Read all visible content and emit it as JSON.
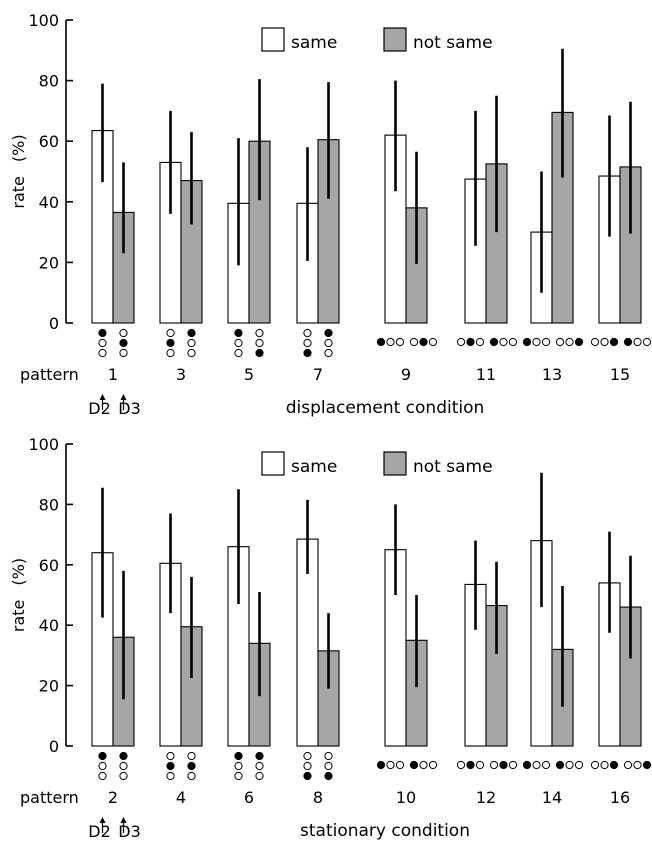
{
  "colors": {
    "same": "#ffffff",
    "not_same": "#a6a6a8",
    "ink": "#000000"
  },
  "chart_data": [
    {
      "type": "bar",
      "title": "",
      "xlabel": "displacement condition",
      "ylabel": "rate",
      "ylabel_unit": "(%)",
      "row_label": "pattern",
      "ylim": [
        0,
        100
      ],
      "yticks": [
        0,
        20,
        40,
        60,
        80,
        100
      ],
      "legend_position": "top",
      "categories": [
        "1",
        "3",
        "5",
        "7",
        "9",
        "11",
        "13",
        "15"
      ],
      "series": [
        {
          "name": "same",
          "color": "#ffffff",
          "values": [
            63.5,
            53,
            39.5,
            39.5,
            62,
            47.5,
            30,
            48.5
          ],
          "err_low": [
            46.5,
            36,
            19,
            20.5,
            43.5,
            25.5,
            10,
            28.5
          ],
          "err_high": [
            79,
            70,
            61,
            58,
            80,
            70,
            50,
            68.5
          ]
        },
        {
          "name": "not same",
          "color": "#a6a6a8",
          "values": [
            36.5,
            47,
            60,
            60.5,
            38,
            52.5,
            69.5,
            51.5
          ],
          "err_low": [
            23,
            32.5,
            40.5,
            41,
            19.5,
            30,
            48,
            29.5
          ],
          "err_high": [
            53,
            63,
            80.5,
            79.5,
            56.5,
            75,
            90.5,
            73
          ]
        }
      ],
      "pattern_icons": [
        {
          "layout": "grid",
          "d2": [
            1,
            0,
            0
          ],
          "d3": [
            0,
            1,
            0
          ]
        },
        {
          "layout": "grid",
          "d2": [
            0,
            1,
            0
          ],
          "d3": [
            1,
            0,
            0
          ]
        },
        {
          "layout": "grid",
          "d2": [
            1,
            0,
            0
          ],
          "d3": [
            0,
            0,
            1
          ]
        },
        {
          "layout": "grid",
          "d2": [
            0,
            0,
            1
          ],
          "d3": [
            1,
            0,
            0
          ]
        },
        {
          "layout": "row",
          "d2": [
            1,
            0,
            0
          ],
          "d3": [
            0,
            1,
            0
          ]
        },
        {
          "layout": "row",
          "d2": [
            0,
            1,
            0
          ],
          "d3": [
            1,
            0,
            0
          ]
        },
        {
          "layout": "row",
          "d2": [
            1,
            0,
            0
          ],
          "d3": [
            0,
            0,
            1
          ]
        },
        {
          "layout": "row",
          "d2": [
            0,
            0,
            1
          ],
          "d3": [
            1,
            0,
            0
          ]
        }
      ],
      "arrow_labels": [
        "D2",
        "D3"
      ]
    },
    {
      "type": "bar",
      "title": "",
      "xlabel": "stationary condition",
      "ylabel": "rate",
      "ylabel_unit": "(%)",
      "row_label": "pattern",
      "ylim": [
        0,
        100
      ],
      "yticks": [
        0,
        20,
        40,
        60,
        80,
        100
      ],
      "legend_position": "top",
      "categories": [
        "2",
        "4",
        "6",
        "8",
        "10",
        "12",
        "14",
        "16"
      ],
      "series": [
        {
          "name": "same",
          "color": "#ffffff",
          "values": [
            64,
            60.5,
            66,
            68.5,
            65,
            53.5,
            68,
            54
          ],
          "err_low": [
            42.5,
            44,
            47,
            57,
            50,
            38.5,
            46,
            37.5
          ],
          "err_high": [
            85.5,
            77,
            85,
            81.5,
            80,
            68,
            90.5,
            71
          ]
        },
        {
          "name": "not same",
          "color": "#a6a6a8",
          "values": [
            36,
            39.5,
            34,
            31.5,
            35,
            46.5,
            32,
            46
          ],
          "err_low": [
            15.5,
            22.5,
            16.5,
            19,
            19.5,
            30.5,
            13,
            29
          ],
          "err_high": [
            58,
            56,
            51,
            44,
            50,
            61,
            53,
            63
          ]
        }
      ],
      "pattern_icons": [
        {
          "layout": "grid",
          "d2": [
            1,
            0,
            0
          ],
          "d3": [
            1,
            0,
            0
          ]
        },
        {
          "layout": "grid",
          "d2": [
            0,
            1,
            0
          ],
          "d3": [
            0,
            1,
            0
          ]
        },
        {
          "layout": "grid",
          "d2": [
            1,
            0,
            0
          ],
          "d3": [
            1,
            0,
            0
          ]
        },
        {
          "layout": "grid",
          "d2": [
            0,
            0,
            1
          ],
          "d3": [
            0,
            0,
            1
          ]
        },
        {
          "layout": "row",
          "d2": [
            1,
            0,
            0
          ],
          "d3": [
            1,
            0,
            0
          ]
        },
        {
          "layout": "row",
          "d2": [
            0,
            1,
            0
          ],
          "d3": [
            0,
            1,
            0
          ]
        },
        {
          "layout": "row",
          "d2": [
            1,
            0,
            0
          ],
          "d3": [
            1,
            0,
            0
          ]
        },
        {
          "layout": "row",
          "d2": [
            0,
            0,
            1
          ],
          "d3": [
            0,
            0,
            1
          ]
        }
      ],
      "arrow_labels": [
        "D2",
        "D3"
      ]
    }
  ]
}
